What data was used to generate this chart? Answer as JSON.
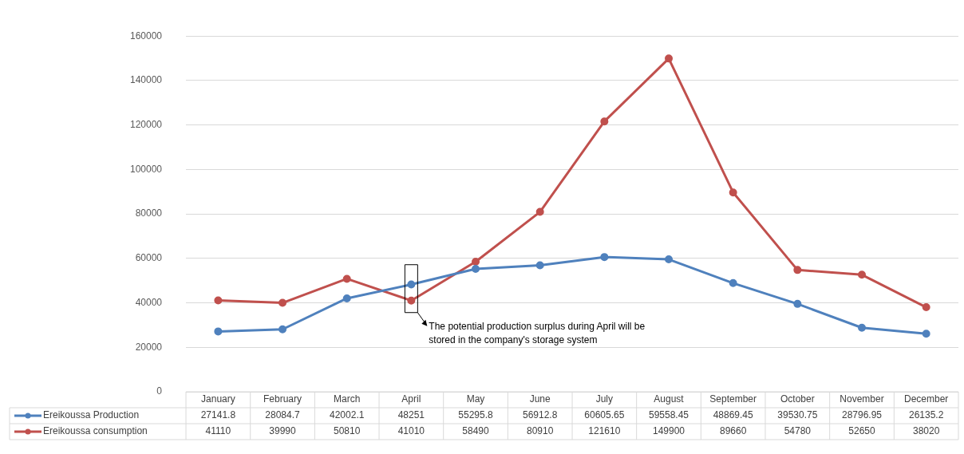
{
  "chart_data": {
    "type": "line",
    "categories": [
      "January",
      "February",
      "March",
      "April",
      "May",
      "June",
      "July",
      "August",
      "September",
      "October",
      "November",
      "December"
    ],
    "series": [
      {
        "name": "Ereikoussa Production",
        "color": "#4f81bd",
        "values": [
          27141.8,
          28084.7,
          42002.1,
          48251,
          55295.8,
          56912.8,
          60605.65,
          59558.45,
          48869.45,
          39530.75,
          28796.95,
          26135.2
        ]
      },
      {
        "name": "Ereikoussa consumption",
        "color": "#c0504d",
        "values": [
          41110,
          39990,
          50810,
          41010,
          58490,
          80910,
          121610,
          149900,
          89660,
          54780,
          52650,
          38020
        ]
      }
    ],
    "ylim": [
      0,
      160000
    ],
    "yticks": [
      0,
      20000,
      40000,
      60000,
      80000,
      100000,
      120000,
      140000,
      160000
    ],
    "grid": "y",
    "legend": "bottom left",
    "marker": "circle",
    "line_style": "solid",
    "data_labels": true,
    "annotations": [
      {
        "text": "The potential production surplus during April will be stored in the company's storage system",
        "x": "April",
        "y": 41010
      }
    ]
  }
}
